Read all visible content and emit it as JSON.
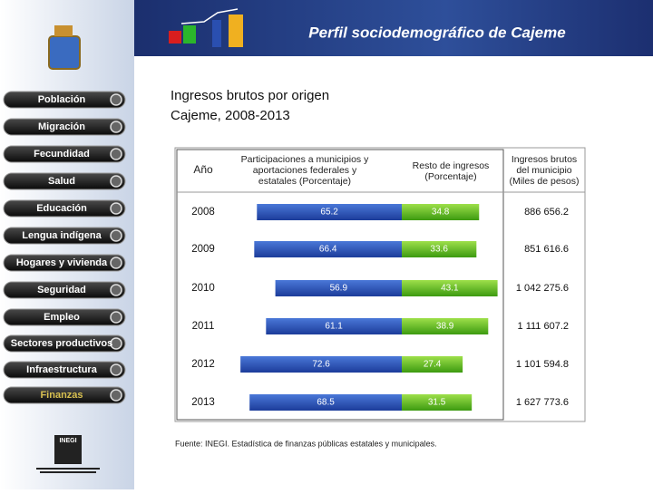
{
  "header": {
    "title": "Perfil sociodemográfico de Cajeme"
  },
  "nav": [
    "Población",
    "Migración",
    "Fecundidad",
    "Salud",
    "Educación",
    "Lengua indígena",
    "Hogares y vivienda",
    "Seguridad",
    "Empleo",
    "Sectores productivos",
    "Infraestructura",
    "Finanzas"
  ],
  "content": {
    "title_line1": "Ingresos brutos por origen",
    "title_line2": "Cajeme, 2008-2013",
    "source": "Fuente: INEGI. Estadística de finanzas públicas estatales y municipales."
  },
  "table": {
    "columns": [
      "Año",
      "Participaciones a municipios y aportaciones federales y estatales (Porcentaje)",
      "Resto de ingresos (Porcentaje)",
      "Ingresos brutos del municipio (Miles de pesos)"
    ],
    "rows": [
      {
        "year": "2008",
        "participaciones": 65.2,
        "resto": 34.8,
        "ingresos": "886 656.2"
      },
      {
        "year": "2009",
        "participaciones": 66.4,
        "resto": 33.6,
        "ingresos": "851 616.6"
      },
      {
        "year": "2010",
        "participaciones": 56.9,
        "resto": 43.1,
        "ingresos": "1 042 275.6"
      },
      {
        "year": "2011",
        "participaciones": 61.1,
        "resto": 38.9,
        "ingresos": "1 111 607.2"
      },
      {
        "year": "2012",
        "participaciones": 72.6,
        "resto": 27.4,
        "ingresos": "1 101 594.8"
      },
      {
        "year": "2013",
        "participaciones": 68.5,
        "resto": 31.5,
        "ingresos": "1 627 773.6"
      }
    ]
  }
}
